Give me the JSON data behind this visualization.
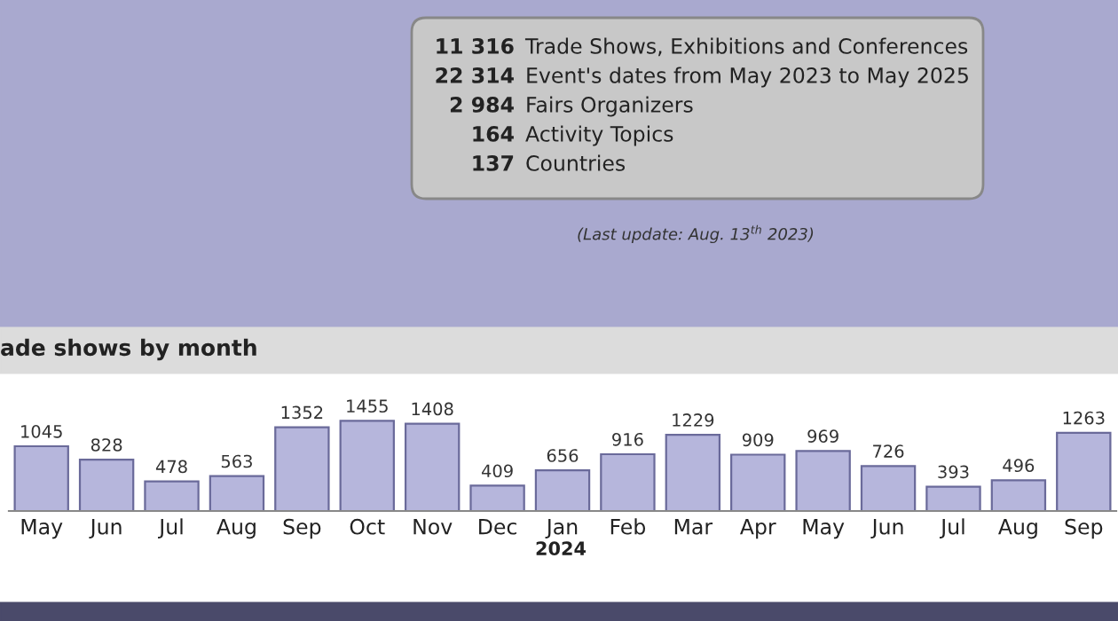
{
  "chart_data": [
    {
      "type": "other",
      "annotations": [
        "11 316",
        "Trade Shows, Exhibitions and Conferences",
        "22 314",
        "Event's dates from May 2023 to May 2025",
        "2 984",
        "Fairs Organizers",
        "164",
        "Activity Topics",
        "137",
        "Countries",
        "(Last update: Aug. 13$^{th}$ 2023)"
      ]
    },
    {
      "type": "bar",
      "title": "ade shows by month",
      "categories": [
        "May",
        "Jun",
        "Jul",
        "Aug",
        "Sep",
        "Oct",
        "Nov",
        "Dec",
        "Jan",
        "Feb",
        "Mar",
        "Apr",
        "May",
        "Jun",
        "Jul",
        "Aug",
        "Sep"
      ],
      "values": [
        1045,
        828,
        478,
        563,
        1352,
        1455,
        1408,
        409,
        656,
        916,
        1229,
        909,
        969,
        726,
        393,
        496,
        1263
      ],
      "color": "#b6b6dc",
      "data_labels": true,
      "annotations": [
        "2024"
      ]
    }
  ]
}
